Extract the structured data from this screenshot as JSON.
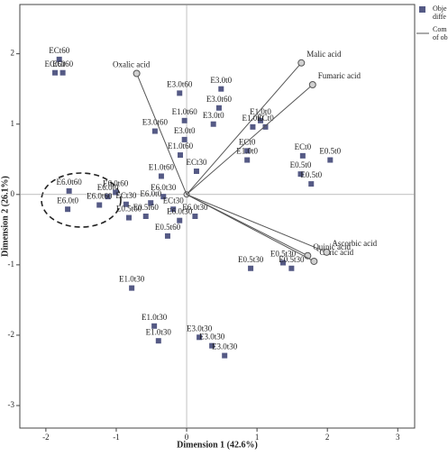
{
  "chart_data": {
    "type": "biplot",
    "xlabel": "Dimension 1 (42.6%)",
    "ylabel": "Dimension 2 (26.1%)",
    "xlim": [
      -2.37,
      3.24
    ],
    "ylim": [
      -3.32,
      2.7
    ],
    "xticks": [
      -2,
      -1,
      0,
      1,
      2,
      3
    ],
    "yticks": [
      -3,
      -2,
      -1,
      0,
      1,
      2
    ],
    "series": [
      {
        "name": [
          "Obje",
          "diffe"
        ],
        "color": "#555a85",
        "kind": "points",
        "labels": [
          "ECt60",
          "ECt60",
          "ECt60",
          "E3.0t60",
          "E3.0t0",
          "E3.0t60",
          "E1.0t60",
          "E3.0t0",
          "E3.0t60",
          "E1.0t0",
          "E1.0t0",
          "ECt0",
          "E3.0t0",
          "E1.0t60",
          "ECt0",
          "E1.0t0",
          "ECt30",
          "E1.0t60",
          "ECt0",
          "E0.5t0",
          "E0.5t0",
          "E0.5t0",
          "E0.5t30",
          "E0.5t30",
          "E0.5t30",
          "E6.0t60",
          "E6.0t0",
          "E6.0t0",
          "E6.0t60",
          "E6.0t60",
          "ECt30",
          "E6.0t0",
          "E0.5t60",
          "E0.5t60",
          "E6.0t30",
          "ECt30",
          "E6.0t30",
          "E6.0t30",
          "E0.5t60",
          "E1.0t30",
          "E1.0t30",
          "E1.0t30",
          "E3.0t30",
          "E3.0t30",
          "E3.0t30"
        ],
        "x": [
          -1.81,
          -1.76,
          -1.87,
          -0.1,
          0.49,
          0.46,
          -0.03,
          0.38,
          -0.45,
          1.05,
          0.94,
          1.12,
          -0.03,
          -0.09,
          0.86,
          0.86,
          0.14,
          -0.36,
          1.65,
          2.04,
          1.62,
          1.77,
          1.37,
          1.49,
          0.91,
          -1.67,
          -1.69,
          -1.12,
          -1.01,
          -1.24,
          -0.86,
          -0.51,
          -0.82,
          -0.58,
          -0.33,
          -0.19,
          -0.1,
          0.12,
          -0.27,
          -0.78,
          -0.46,
          -0.4,
          0.18,
          0.36,
          0.54
        ],
        "y": [
          1.92,
          1.73,
          1.73,
          1.44,
          1.5,
          1.23,
          1.05,
          1.0,
          0.9,
          1.05,
          0.96,
          0.96,
          0.78,
          0.56,
          0.62,
          0.49,
          0.33,
          0.26,
          0.55,
          0.49,
          0.29,
          0.15,
          -0.97,
          -1.05,
          -1.05,
          0.05,
          -0.21,
          -0.03,
          0.03,
          -0.15,
          -0.14,
          -0.12,
          -0.33,
          -0.31,
          -0.03,
          -0.21,
          -0.37,
          -0.31,
          -0.59,
          -1.33,
          -1.87,
          -2.08,
          -2.03,
          -2.15,
          -2.29
        ]
      },
      {
        "name": [
          "Com",
          "of ob"
        ],
        "color": "#555555",
        "kind": "vectors",
        "labels": [
          "Oxalic acid",
          "Malic acid",
          "Fumaric acid",
          "Quinic acid",
          "Citric acid",
          "Ascorbic acid"
        ],
        "x": [
          -0.71,
          1.63,
          1.79,
          1.72,
          1.81,
          1.99
        ],
        "y": [
          1.72,
          1.87,
          1.56,
          -0.87,
          -0.95,
          -0.82
        ]
      }
    ]
  }
}
